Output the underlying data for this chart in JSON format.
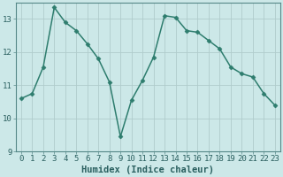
{
  "x": [
    0,
    1,
    2,
    3,
    4,
    5,
    6,
    7,
    8,
    9,
    10,
    11,
    12,
    13,
    14,
    15,
    16,
    17,
    18,
    19,
    20,
    21,
    22,
    23
  ],
  "y": [
    10.6,
    10.75,
    11.55,
    13.35,
    12.9,
    12.65,
    12.25,
    11.8,
    11.1,
    9.45,
    10.55,
    11.15,
    11.85,
    13.1,
    13.05,
    12.65,
    12.6,
    12.35,
    12.1,
    11.55,
    11.35,
    11.25,
    10.75,
    10.4
  ],
  "line_color": "#2e7d6e",
  "marker": "D",
  "marker_size": 2.5,
  "bg_color": "#cce8e8",
  "grid_color": "#b0cccc",
  "xlabel": "Humidex (Indice chaleur)",
  "ylim": [
    9,
    13.5
  ],
  "xlim": [
    -0.5,
    23.5
  ],
  "yticks": [
    9,
    10,
    11,
    12,
    13
  ],
  "xticks": [
    0,
    1,
    2,
    3,
    4,
    5,
    6,
    7,
    8,
    9,
    10,
    11,
    12,
    13,
    14,
    15,
    16,
    17,
    18,
    19,
    20,
    21,
    22,
    23
  ],
  "xtick_labels": [
    "0",
    "1",
    "2",
    "3",
    "4",
    "5",
    "6",
    "7",
    "8",
    "9",
    "10",
    "11",
    "12",
    "13",
    "14",
    "15",
    "16",
    "17",
    "18",
    "19",
    "20",
    "21",
    "22",
    "23"
  ],
  "tick_label_size": 6.5,
  "xlabel_size": 7.5,
  "linewidth": 1.1,
  "spine_color": "#558888",
  "text_color": "#2a5f5f"
}
